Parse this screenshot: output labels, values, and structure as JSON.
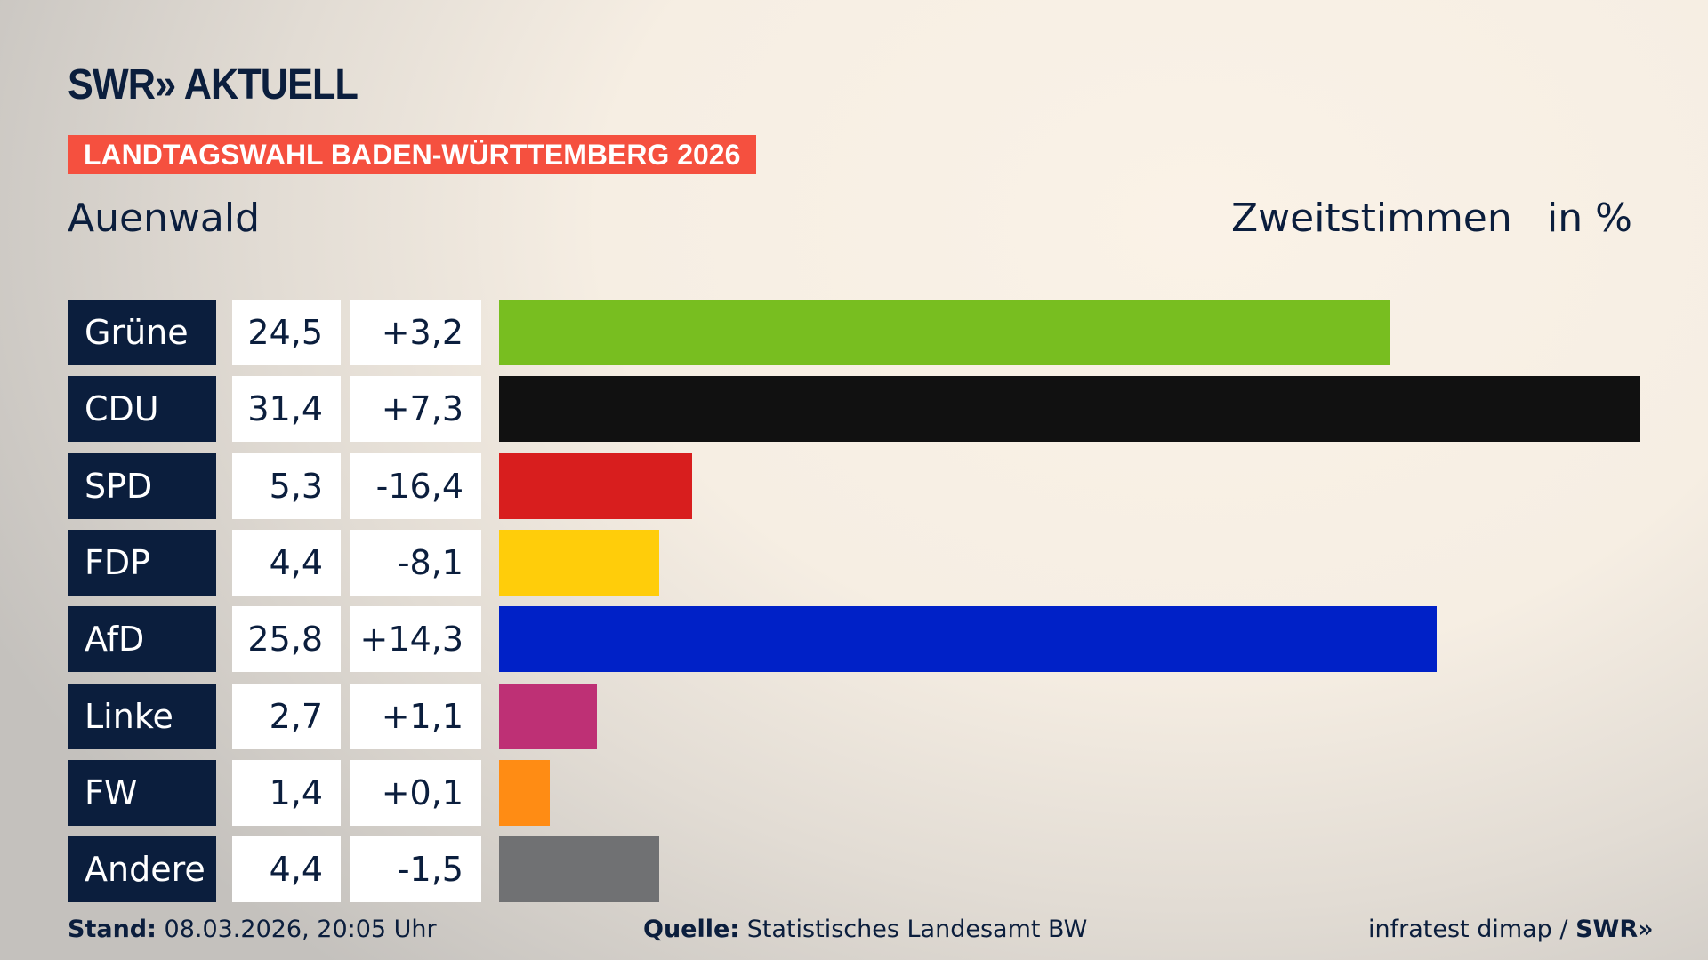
{
  "header": {
    "logo": "SWR» AKTUELL",
    "banner": "LANDTAGSWAHL BADEN-WÜRTTEMBERG 2026",
    "place": "Auenwald",
    "vote_type": "Zweitstimmen",
    "unit": "in %"
  },
  "chart_data": {
    "type": "bar",
    "orientation": "horizontal",
    "categories": [
      "Grüne",
      "CDU",
      "SPD",
      "FDP",
      "AfD",
      "Linke",
      "FW",
      "Andere"
    ],
    "values": [
      24.5,
      31.4,
      5.3,
      4.4,
      25.8,
      2.7,
      1.4,
      4.4
    ],
    "value_labels": [
      "24,5",
      "31,4",
      "5,3",
      "4,4",
      "25,8",
      "2,7",
      "1,4",
      "4,4"
    ],
    "diff_labels": [
      "+3,2",
      "+7,3",
      "-16,4",
      "-8,1",
      "+14,3",
      "+1,1",
      "+0,1",
      "-1,5"
    ],
    "colors": [
      "#78be20",
      "#111111",
      "#d81e1e",
      "#ffcd0a",
      "#0021c7",
      "#be3075",
      "#ff8c14",
      "#707173"
    ],
    "grid": false
  },
  "footer": {
    "stand_label": "Stand:",
    "stand": "08.03.2026, 20:05 Uhr",
    "source_label": "Quelle:",
    "source": "Statistisches Landesamt BW",
    "credit": "infratest dimap / ",
    "credit_logo": "SWR»"
  }
}
